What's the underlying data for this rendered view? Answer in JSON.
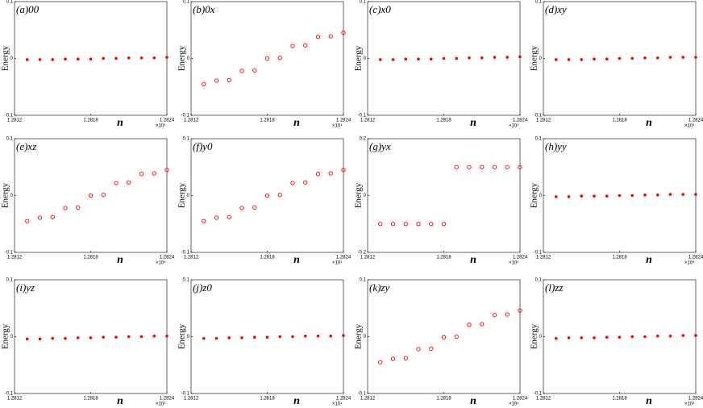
{
  "chart_data": [
    {
      "type": "scatter",
      "title": "(a)00",
      "xlabel": "n",
      "ylabel": "Energy",
      "x_multiplier": "×10⁴",
      "marker": "filled",
      "color": "#ff0000",
      "x": [
        12813,
        12814,
        12815,
        12816,
        12817,
        12818,
        12819,
        12820,
        12821,
        12822,
        12823,
        12824
      ],
      "values": [
        -0.002,
        -0.002,
        -0.002,
        -0.001,
        -0.001,
        -0.001,
        0,
        0,
        0.001,
        0.001,
        0.001,
        0.002
      ],
      "xlim": [
        12812,
        12824
      ],
      "xticks": [
        {
          "value": 12812,
          "label": "1.2812"
        },
        {
          "value": 12818,
          "label": "1.2818"
        },
        {
          "value": 12824,
          "label": "1.2824"
        }
      ],
      "ylim": [
        -0.1,
        0.1
      ],
      "yticks": [
        -0.1,
        0,
        0.1
      ]
    },
    {
      "type": "scatter",
      "title": "(b)0x",
      "xlabel": "n",
      "ylabel": "Energy",
      "x_multiplier": "×10⁴",
      "marker": "open",
      "color": "#ff0000",
      "x": [
        12813,
        12814,
        12815,
        12816,
        12817,
        12818,
        12819,
        12820,
        12821,
        12822,
        12823,
        12824
      ],
      "values": [
        -0.045,
        -0.039,
        -0.038,
        -0.022,
        -0.021,
        0,
        0.001,
        0.022,
        0.023,
        0.038,
        0.039,
        0.045
      ],
      "xlim": [
        12812,
        12824
      ],
      "xticks": [
        {
          "value": 12812,
          "label": "1.2812"
        },
        {
          "value": 12818,
          "label": "1.2818"
        },
        {
          "value": 12824,
          "label": "1.2824"
        }
      ],
      "ylim": [
        -0.1,
        0.1
      ],
      "yticks": [
        -0.1,
        0,
        0.1
      ]
    },
    {
      "type": "scatter",
      "title": "(c)x0",
      "xlabel": "n",
      "ylabel": "Energy",
      "x_multiplier": "×10⁴",
      "marker": "filled",
      "color": "#ff0000",
      "x": [
        12813,
        12814,
        12815,
        12816,
        12817,
        12818,
        12819,
        12820,
        12821,
        12822,
        12823,
        12824
      ],
      "values": [
        -0.002,
        -0.002,
        -0.001,
        -0.001,
        -0.001,
        0,
        0,
        0.001,
        0.001,
        0.002,
        0.002,
        0.003
      ],
      "xlim": [
        12812,
        12824
      ],
      "xticks": [
        {
          "value": 12812,
          "label": "1.2812"
        },
        {
          "value": 12818,
          "label": "1.2818"
        },
        {
          "value": 12824,
          "label": "1.2824"
        }
      ],
      "ylim": [
        -0.1,
        0.1
      ],
      "yticks": [
        -0.1,
        0,
        0.1
      ]
    },
    {
      "type": "scatter",
      "title": "(d)xy",
      "xlabel": "n",
      "ylabel": "Energy",
      "x_multiplier": "×10⁴",
      "marker": "filled",
      "color": "#ff0000",
      "x": [
        12813,
        12814,
        12815,
        12816,
        12817,
        12818,
        12819,
        12820,
        12821,
        12822,
        12823,
        12824
      ],
      "values": [
        -0.002,
        -0.002,
        -0.002,
        -0.001,
        -0.001,
        0,
        0,
        0.001,
        0.001,
        0.002,
        0.002,
        0.002
      ],
      "xlim": [
        12812,
        12824
      ],
      "xticks": [
        {
          "value": 12812,
          "label": "1.2812"
        },
        {
          "value": 12818,
          "label": "1.2818"
        },
        {
          "value": 12824,
          "label": "1.2824"
        }
      ],
      "ylim": [
        -0.1,
        0.1
      ],
      "yticks": [
        -0.1,
        0,
        0.1
      ]
    },
    {
      "type": "scatter",
      "title": "(e)xz",
      "xlabel": "n",
      "ylabel": "Energy",
      "x_multiplier": "×10⁴",
      "marker": "open",
      "color": "#ff0000",
      "x": [
        12813,
        12814,
        12815,
        12816,
        12817,
        12818,
        12819,
        12820,
        12821,
        12822,
        12823,
        12824
      ],
      "values": [
        -0.045,
        -0.039,
        -0.038,
        -0.022,
        -0.021,
        0,
        0.001,
        0.022,
        0.023,
        0.038,
        0.039,
        0.045
      ],
      "xlim": [
        12812,
        12824
      ],
      "xticks": [
        {
          "value": 12812,
          "label": "1.2812"
        },
        {
          "value": 12818,
          "label": "1.2818"
        },
        {
          "value": 12824,
          "label": "1.2824"
        }
      ],
      "ylim": [
        -0.1,
        0.1
      ],
      "yticks": [
        -0.1,
        0,
        0.1
      ]
    },
    {
      "type": "scatter",
      "title": "(f)y0",
      "xlabel": "n",
      "ylabel": "Energy",
      "x_multiplier": "×10⁴",
      "marker": "open",
      "color": "#ff0000",
      "x": [
        12813,
        12814,
        12815,
        12816,
        12817,
        12818,
        12819,
        12820,
        12821,
        12822,
        12823,
        12824
      ],
      "values": [
        -0.045,
        -0.039,
        -0.038,
        -0.022,
        -0.021,
        0,
        0.001,
        0.022,
        0.023,
        0.038,
        0.039,
        0.045
      ],
      "xlim": [
        12812,
        12824
      ],
      "xticks": [
        {
          "value": 12812,
          "label": "1.2812"
        },
        {
          "value": 12818,
          "label": "1.2818"
        },
        {
          "value": 12824,
          "label": "1.2824"
        }
      ],
      "ylim": [
        -0.1,
        0.1
      ],
      "yticks": [
        -0.1,
        0,
        0.1
      ]
    },
    {
      "type": "scatter",
      "title": "(g)yx",
      "xlabel": "n",
      "ylabel": "Energy",
      "x_multiplier": "×10⁴",
      "marker": "open",
      "color": "#ff0000",
      "x": [
        12813,
        12814,
        12815,
        12816,
        12817,
        12818,
        12819,
        12820,
        12821,
        12822,
        12823,
        12824
      ],
      "values": [
        -0.1,
        -0.1,
        -0.1,
        -0.1,
        -0.1,
        -0.1,
        0.1,
        0.1,
        0.1,
        0.1,
        0.1,
        0.1
      ],
      "xlim": [
        12812,
        12824
      ],
      "xticks": [
        {
          "value": 12812,
          "label": "1.2812"
        },
        {
          "value": 12818,
          "label": "1.2818"
        },
        {
          "value": 12824,
          "label": "1.2824"
        }
      ],
      "ylim": [
        -0.2,
        0.2
      ],
      "yticks": [
        -0.2,
        0,
        0.2
      ]
    },
    {
      "type": "scatter",
      "title": "(h)yy",
      "xlabel": "n",
      "ylabel": "Energy",
      "x_multiplier": "×10⁴",
      "marker": "filled",
      "color": "#ff0000",
      "x": [
        12813,
        12814,
        12815,
        12816,
        12817,
        12818,
        12819,
        12820,
        12821,
        12822,
        12823,
        12824
      ],
      "values": [
        -0.002,
        -0.002,
        -0.001,
        -0.001,
        -0.001,
        0,
        0,
        0.001,
        0.001,
        0.002,
        0.002,
        0.002
      ],
      "xlim": [
        12812,
        12824
      ],
      "xticks": [
        {
          "value": 12812,
          "label": "1.2812"
        },
        {
          "value": 12818,
          "label": "1.2818"
        },
        {
          "value": 12824,
          "label": "1.2824"
        }
      ],
      "ylim": [
        -0.1,
        0.1
      ],
      "yticks": [
        -0.1,
        0,
        0.1
      ]
    },
    {
      "type": "scatter",
      "title": "(i)yz",
      "xlabel": "n",
      "ylabel": "Energy",
      "x_multiplier": "×10⁴",
      "marker": "filled",
      "color": "#ff0000",
      "x": [
        12813,
        12814,
        12815,
        12816,
        12817,
        12818,
        12819,
        12820,
        12821,
        12822,
        12823,
        12824
      ],
      "values": [
        -0.004,
        -0.004,
        -0.003,
        -0.003,
        -0.002,
        -0.002,
        -0.001,
        -0.001,
        0,
        0,
        0.001,
        0.001
      ],
      "xlim": [
        12812,
        12824
      ],
      "xticks": [
        {
          "value": 12812,
          "label": "1.2812"
        },
        {
          "value": 12818,
          "label": "1.2818"
        },
        {
          "value": 12824,
          "label": "1.2824"
        }
      ],
      "ylim": [
        -0.1,
        0.1
      ],
      "yticks": [
        -0.1,
        0,
        0.1
      ]
    },
    {
      "type": "scatter",
      "title": "(j)z0",
      "xlabel": "n",
      "ylabel": "Energy",
      "x_multiplier": "×10⁴",
      "marker": "filled",
      "color": "#ff0000",
      "x": [
        12813,
        12814,
        12815,
        12816,
        12817,
        12818,
        12819,
        12820,
        12821,
        12822,
        12823,
        12824
      ],
      "values": [
        -0.003,
        -0.003,
        -0.002,
        -0.002,
        -0.001,
        -0.001,
        0,
        0,
        0.001,
        0.001,
        0.001,
        0.002
      ],
      "xlim": [
        12812,
        12824
      ],
      "xticks": [
        {
          "value": 12812,
          "label": "1.2812"
        },
        {
          "value": 12818,
          "label": "1.2818"
        },
        {
          "value": 12824,
          "label": "1.2824"
        }
      ],
      "ylim": [
        -0.1,
        0.1
      ],
      "yticks": [
        -0.1,
        0,
        0.1
      ]
    },
    {
      "type": "scatter",
      "title": "(k)zy",
      "xlabel": "n",
      "ylabel": "Energy",
      "x_multiplier": "×10⁴",
      "marker": "open",
      "color": "#ff0000",
      "x": [
        12813,
        12814,
        12815,
        12816,
        12817,
        12818,
        12819,
        12820,
        12821,
        12822,
        12823,
        12824
      ],
      "values": [
        -0.045,
        -0.039,
        -0.038,
        -0.022,
        -0.021,
        -0.001,
        0,
        0.021,
        0.022,
        0.038,
        0.039,
        0.046
      ],
      "xlim": [
        12812,
        12824
      ],
      "xticks": [
        {
          "value": 12812,
          "label": "1.2812"
        },
        {
          "value": 12818,
          "label": "1.2818"
        },
        {
          "value": 12824,
          "label": "1.2824"
        }
      ],
      "ylim": [
        -0.1,
        0.1
      ],
      "yticks": [
        -0.1,
        0,
        0.1
      ]
    },
    {
      "type": "scatter",
      "title": "(l)zz",
      "xlabel": "n",
      "ylabel": "Energy",
      "x_multiplier": "×10⁴",
      "marker": "filled",
      "color": "#ff0000",
      "x": [
        12813,
        12814,
        12815,
        12816,
        12817,
        12818,
        12819,
        12820,
        12821,
        12822,
        12823,
        12824
      ],
      "values": [
        -0.003,
        -0.002,
        -0.002,
        -0.002,
        -0.001,
        -0.001,
        0,
        0,
        0.001,
        0.001,
        0.002,
        0.002
      ],
      "xlim": [
        12812,
        12824
      ],
      "xticks": [
        {
          "value": 12812,
          "label": "1.2812"
        },
        {
          "value": 12818,
          "label": "1.2818"
        },
        {
          "value": 12824,
          "label": "1.2824"
        }
      ],
      "ylim": [
        -0.1,
        0.1
      ],
      "yticks": [
        -0.1,
        0,
        0.1
      ]
    }
  ]
}
